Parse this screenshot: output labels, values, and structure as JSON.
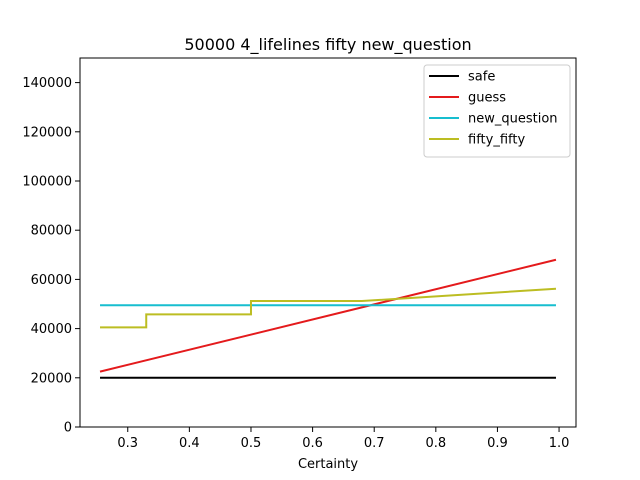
{
  "chart_data": {
    "type": "line",
    "title": "50000 4_lifelines fifty new_question",
    "xlabel": "Certainty",
    "ylabel": "",
    "xlim": [
      0.2225,
      1.0275
    ],
    "ylim": [
      0,
      150000
    ],
    "xticks": [
      0.3,
      0.4,
      0.5,
      0.6,
      0.7,
      0.8,
      0.9,
      1.0
    ],
    "xtick_labels": [
      "0.3",
      "0.4",
      "0.5",
      "0.6",
      "0.7",
      "0.8",
      "0.9",
      "1.0"
    ],
    "yticks": [
      0,
      20000,
      40000,
      60000,
      80000,
      100000,
      120000,
      140000
    ],
    "ytick_labels": [
      "0",
      "20000",
      "40000",
      "60000",
      "80000",
      "100000",
      "120000",
      "140000"
    ],
    "grid": false,
    "legend_position": "top-right",
    "series": [
      {
        "name": "safe",
        "color": "#000000",
        "x": [
          0.255,
          0.995
        ],
        "y": [
          20000,
          20000
        ]
      },
      {
        "name": "guess",
        "color": "#e41a1c",
        "x": [
          0.255,
          0.995
        ],
        "y": [
          22500,
          68000
        ]
      },
      {
        "name": "new_question",
        "color": "#17becf",
        "x": [
          0.255,
          0.995
        ],
        "y": [
          49500,
          49500
        ]
      },
      {
        "name": "fifty_fifty",
        "color": "#bcbd22",
        "x": [
          0.255,
          0.33,
          0.33,
          0.5,
          0.5,
          0.68,
          0.995
        ],
        "y": [
          40500,
          40500,
          45800,
          45800,
          51200,
          51200,
          56200
        ]
      }
    ]
  }
}
